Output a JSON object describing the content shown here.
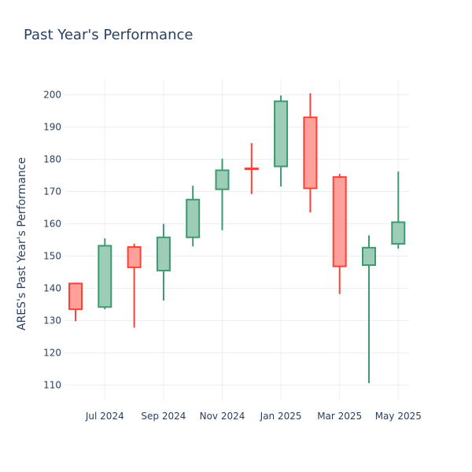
{
  "chart_data": {
    "type": "candlestick",
    "title": "Past Year's Performance",
    "xlabel": "",
    "ylabel": "ARES's Past Year's Performance",
    "ylim": [
      105,
      205
    ],
    "yticks": [
      110,
      120,
      130,
      140,
      150,
      160,
      170,
      180,
      190,
      200
    ],
    "xticks": [
      {
        "label": "Jul 2024",
        "index": 1
      },
      {
        "label": "Sep 2024",
        "index": 3
      },
      {
        "label": "Nov 2024",
        "index": 5
      },
      {
        "label": "Jan 2025",
        "index": 7
      },
      {
        "label": "Mar 2025",
        "index": 9
      },
      {
        "label": "May 2025",
        "index": 11
      }
    ],
    "grid": true,
    "colors": {
      "increasing_line": "#3d9970",
      "increasing_fill": "#9dcdb6",
      "decreasing_line": "#ff4136",
      "decreasing_fill": "#ffa09a"
    },
    "candles": [
      {
        "open": 141.5,
        "high": 141.5,
        "low": 129.8,
        "close": 133.5
      },
      {
        "open": 134.2,
        "high": 155.5,
        "low": 133.5,
        "close": 153.2
      },
      {
        "open": 152.8,
        "high": 153.8,
        "low": 127.8,
        "close": 146.5
      },
      {
        "open": 145.5,
        "high": 160.0,
        "low": 136.2,
        "close": 155.8
      },
      {
        "open": 155.8,
        "high": 171.8,
        "low": 153.0,
        "close": 167.5
      },
      {
        "open": 170.7,
        "high": 180.2,
        "low": 158.0,
        "close": 176.6
      },
      {
        "open": 177.2,
        "high": 185.0,
        "low": 169.2,
        "close": 176.9
      },
      {
        "open": 177.8,
        "high": 199.8,
        "low": 171.6,
        "close": 198.0
      },
      {
        "open": 193.0,
        "high": 200.5,
        "low": 163.5,
        "close": 171.0
      },
      {
        "open": 174.5,
        "high": 175.5,
        "low": 138.2,
        "close": 146.8
      },
      {
        "open": 147.2,
        "high": 156.4,
        "low": 110.6,
        "close": 152.6
      },
      {
        "open": 153.8,
        "high": 176.2,
        "low": 152.3,
        "close": 160.5
      }
    ]
  }
}
